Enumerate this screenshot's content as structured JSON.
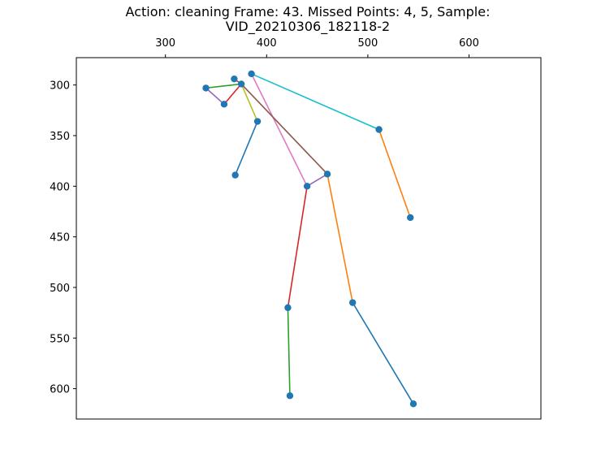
{
  "chart_data": {
    "type": "scatter",
    "title_lines": [
      "Action: cleaning   Frame: 43. Missed Points: 4, 5,  Sample:",
      "VID_20210306_182118-2"
    ],
    "xlabel": "",
    "ylabel": "",
    "x_axis_position": "top",
    "y_inverted": true,
    "xlim": [
      212,
      671
    ],
    "ylim": [
      630,
      273
    ],
    "xticks": [
      300,
      400,
      500,
      600
    ],
    "yticks": [
      300,
      350,
      400,
      450,
      500,
      550,
      600
    ],
    "grid": false,
    "point_color": "#1f77b4",
    "points": [
      {
        "x": 385,
        "y": 289
      },
      {
        "x": 368,
        "y": 294
      },
      {
        "x": 375,
        "y": 299
      },
      {
        "x": 340,
        "y": 303
      },
      {
        "x": 358,
        "y": 319
      },
      {
        "x": 391,
        "y": 336
      },
      {
        "x": 369,
        "y": 389
      },
      {
        "x": 511,
        "y": 344
      },
      {
        "x": 542,
        "y": 431
      },
      {
        "x": 460,
        "y": 388
      },
      {
        "x": 440,
        "y": 400
      },
      {
        "x": 485,
        "y": 515
      },
      {
        "x": 421,
        "y": 520
      },
      {
        "x": 545,
        "y": 615
      },
      {
        "x": 423,
        "y": 607
      }
    ],
    "segments": [
      {
        "from": 1,
        "to": 2,
        "color": "#8c564b"
      },
      {
        "from": 2,
        "to": 3,
        "color": "#2ca02c"
      },
      {
        "from": 3,
        "to": 4,
        "color": "#9467bd"
      },
      {
        "from": 4,
        "to": 2,
        "color": "#d62728"
      },
      {
        "from": 2,
        "to": 5,
        "color": "#bcbd22"
      },
      {
        "from": 5,
        "to": 6,
        "color": "#1f77b4"
      },
      {
        "from": 0,
        "to": 7,
        "color": "#17becf"
      },
      {
        "from": 7,
        "to": 8,
        "color": "#ff7f0e"
      },
      {
        "from": 0,
        "to": 10,
        "color": "#e377c2"
      },
      {
        "from": 2,
        "to": 9,
        "color": "#8c564b"
      },
      {
        "from": 9,
        "to": 10,
        "color": "#9467bd"
      },
      {
        "from": 10,
        "to": 12,
        "color": "#d62728"
      },
      {
        "from": 9,
        "to": 11,
        "color": "#ff7f0e"
      },
      {
        "from": 12,
        "to": 14,
        "color": "#2ca02c"
      },
      {
        "from": 11,
        "to": 13,
        "color": "#1f77b4"
      }
    ]
  }
}
